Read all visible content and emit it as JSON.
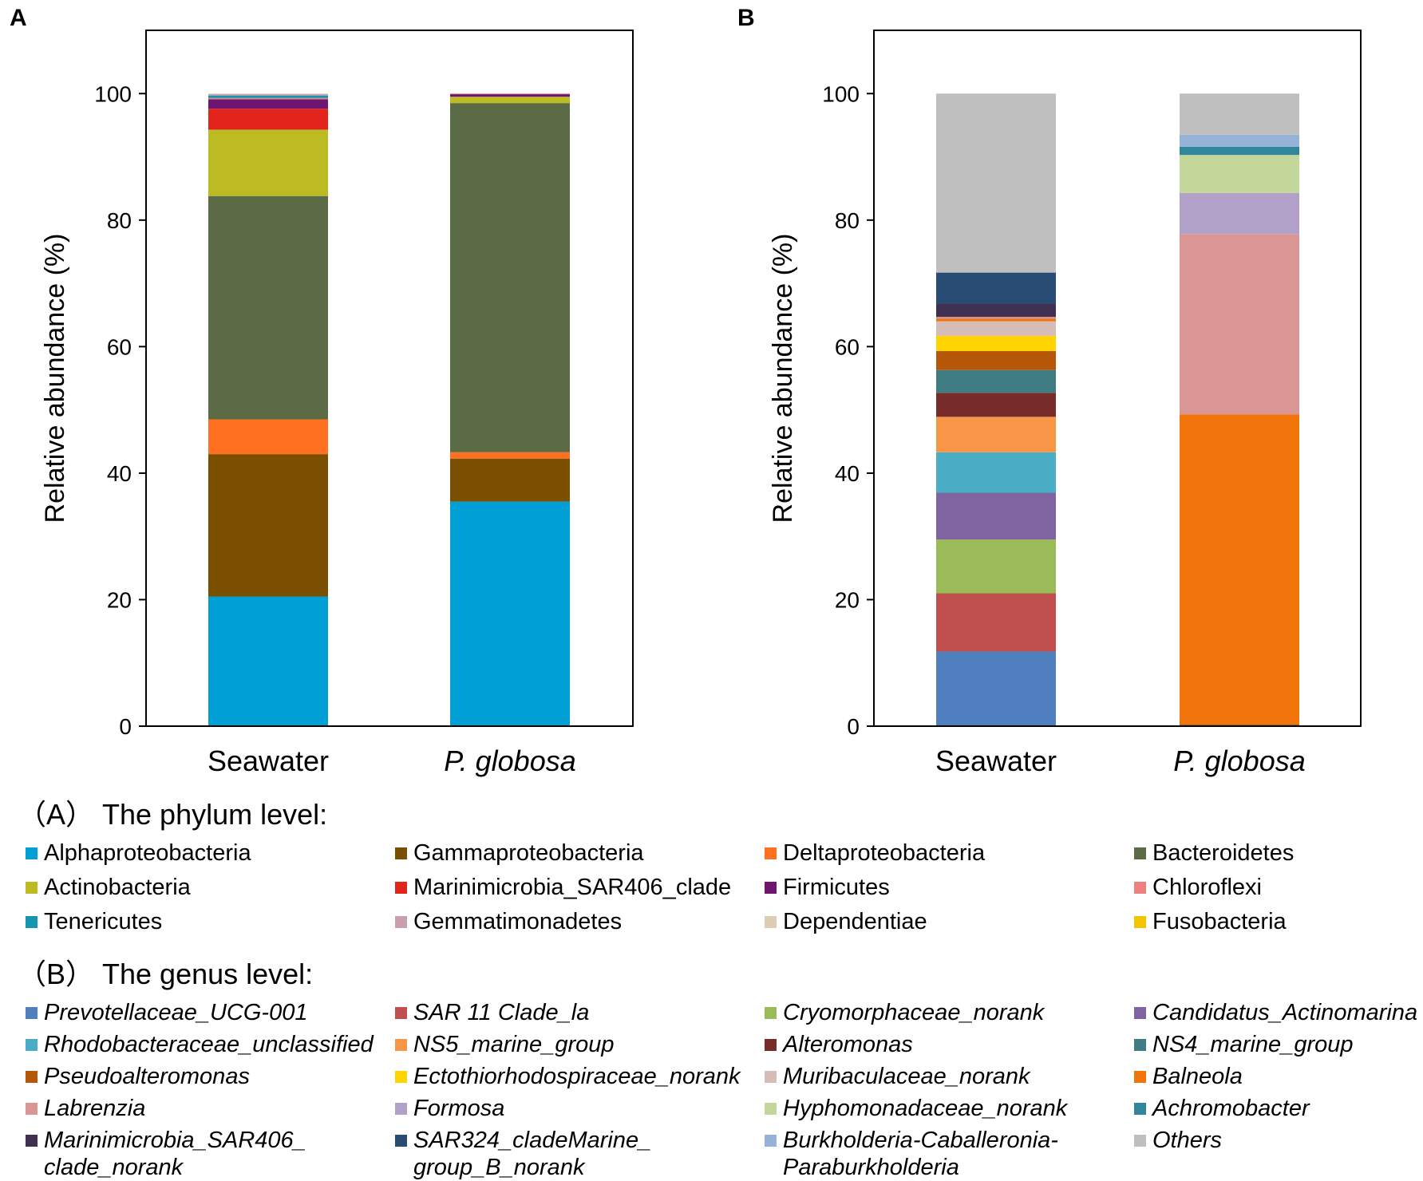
{
  "chart_data": [
    {
      "type": "bar",
      "stacked": true,
      "panel_label": "A",
      "ylabel": "Relative abundance (%)",
      "ylim": [
        0,
        110
      ],
      "yticks": [
        0,
        20,
        40,
        60,
        80,
        100
      ],
      "categories": [
        "Seawater",
        "P. globosa"
      ],
      "category_italic": [
        false,
        true
      ],
      "series": [
        {
          "name": "Alphaproteobacteria",
          "color": "#00A0D6",
          "values": [
            20.5,
            35.5
          ]
        },
        {
          "name": "Gammaproteobacteria",
          "color": "#7A5000",
          "values": [
            22.5,
            6.8
          ]
        },
        {
          "name": "Deltaproteobacteria",
          "color": "#FF7020",
          "values": [
            5.5,
            1.0
          ]
        },
        {
          "name": "Bacteroidetes",
          "color": "#5B6B45",
          "values": [
            35.3,
            55.2
          ]
        },
        {
          "name": "Actinobacteria",
          "color": "#BCBC22",
          "values": [
            10.5,
            1.0
          ]
        },
        {
          "name": "Marinimicrobia_SAR406_clade",
          "color": "#E3241C",
          "values": [
            3.3,
            0.0
          ]
        },
        {
          "name": "Firmicutes",
          "color": "#6E1570",
          "values": [
            1.5,
            0.4
          ]
        },
        {
          "name": "Chloroflexi",
          "color": "#F08080",
          "values": [
            0.2,
            0.1
          ]
        },
        {
          "name": "Tenericutes",
          "color": "#1495B0",
          "values": [
            0.4,
            0.0
          ]
        },
        {
          "name": "Gemmatimonadetes",
          "color": "#C8A0B0",
          "values": [
            0.2,
            0.0
          ]
        },
        {
          "name": "Dependentiae",
          "color": "#DCCDB4",
          "values": [
            0.1,
            0.0
          ]
        },
        {
          "name": "Fusobacteria",
          "color": "#F5C400",
          "values": [
            0.0,
            0.0
          ]
        }
      ]
    },
    {
      "type": "bar",
      "stacked": true,
      "panel_label": "B",
      "ylabel": "Relative abundance (%)",
      "ylim": [
        0,
        110
      ],
      "yticks": [
        0,
        20,
        40,
        60,
        80,
        100
      ],
      "categories": [
        "Seawater",
        "P. globosa"
      ],
      "category_italic": [
        false,
        true
      ],
      "series": [
        {
          "name": "Prevotellaceae_UCG-001",
          "color": "#4F7FBE",
          "values": [
            11.8,
            0.0
          ]
        },
        {
          "name": "SAR 11 Clade_la",
          "color": "#C0504D",
          "values": [
            9.2,
            0.0
          ]
        },
        {
          "name": "Cryomorphaceae_norank",
          "color": "#9BBB59",
          "values": [
            8.5,
            0.0
          ]
        },
        {
          "name": "Candidatus_Actinomarina",
          "color": "#8064A2",
          "values": [
            7.4,
            0.0
          ]
        },
        {
          "name": "Rhodobacteraceae_unclassified",
          "color": "#4BACC6",
          "values": [
            6.4,
            0.0
          ]
        },
        {
          "name": "NS5_marine_group",
          "color": "#F79646",
          "values": [
            5.6,
            0.0
          ]
        },
        {
          "name": "Alteromonas",
          "color": "#772C2A",
          "values": [
            3.8,
            0.0
          ]
        },
        {
          "name": "NS4_marine_group",
          "color": "#3F7C84",
          "values": [
            3.6,
            0.0
          ]
        },
        {
          "name": "Pseudoalteromonas",
          "color": "#B65708",
          "values": [
            3.0,
            0.3
          ]
        },
        {
          "name": "Ectothiorhodospiraceae_norank",
          "color": "#FFD400",
          "values": [
            2.4,
            0.0
          ]
        },
        {
          "name": "Muribaculaceae_norank",
          "color": "#D7BDB7",
          "values": [
            2.3,
            0.0
          ]
        },
        {
          "name": "Balneola",
          "color": "#F1750A",
          "values": [
            0.4,
            49.0
          ]
        },
        {
          "name": "Labrenzia",
          "color": "#DA9694",
          "values": [
            0.3,
            28.5
          ]
        },
        {
          "name": "Formosa",
          "color": "#B1A0C7",
          "values": [
            0.0,
            6.5
          ]
        },
        {
          "name": "Hyphomonadaceae_norank",
          "color": "#C4D79B",
          "values": [
            0.0,
            6.0
          ]
        },
        {
          "name": "Achromobacter",
          "color": "#31869B",
          "values": [
            0.0,
            1.3
          ]
        },
        {
          "name": "Marinimicrobia_SAR406_clade_norank",
          "color": "#403152",
          "values": [
            2.1,
            0.0
          ]
        },
        {
          "name": "SAR324_cladeMarine_group_B_norank",
          "color": "#284C73",
          "values": [
            4.9,
            0.0
          ]
        },
        {
          "name": "Burkholderia-Caballeronia-Paraburkholderia",
          "color": "#95B3D7",
          "values": [
            0.0,
            1.9
          ]
        },
        {
          "name": "Others",
          "color": "#BFBFBF",
          "values": [
            28.3,
            6.5
          ]
        }
      ]
    }
  ],
  "legend": {
    "phylum_title": "（A） The phylum level:",
    "genus_title": "（B） The genus level:",
    "phylum_items": [
      {
        "label": "Alphaproteobacteria",
        "color": "#00A0D6"
      },
      {
        "label": "Gammaproteobacteria",
        "color": "#7A5000"
      },
      {
        "label": "Deltaproteobacteria",
        "color": "#FF7020"
      },
      {
        "label": "Bacteroidetes",
        "color": "#5B6B45"
      },
      {
        "label": "Actinobacteria",
        "color": "#BCBC22"
      },
      {
        "label": "Marinimicrobia_SAR406_clade",
        "color": "#E3241C"
      },
      {
        "label": "Firmicutes",
        "color": "#6E1570"
      },
      {
        "label": "Chloroflexi",
        "color": "#F08080"
      },
      {
        "label": "Tenericutes",
        "color": "#1495B0"
      },
      {
        "label": "Gemmatimonadetes",
        "color": "#C8A0B0"
      },
      {
        "label": "Dependentiae",
        "color": "#DCCDB4"
      },
      {
        "label": "Fusobacteria",
        "color": "#F5C400"
      }
    ],
    "genus_items": [
      {
        "label": "Prevotellaceae_UCG-001",
        "color": "#4F7FBE"
      },
      {
        "label": "SAR 11 Clade_la",
        "color": "#C0504D"
      },
      {
        "label": "Cryomorphaceae_norank",
        "color": "#9BBB59"
      },
      {
        "label": "Candidatus_Actinomarina",
        "color": "#8064A2"
      },
      {
        "label": "Rhodobacteraceae_unclassified",
        "color": "#4BACC6"
      },
      {
        "label": "NS5_marine_group",
        "color": "#F79646"
      },
      {
        "label": "Alteromonas",
        "color": "#772C2A"
      },
      {
        "label": "NS4_marine_group",
        "color": "#3F7C84"
      },
      {
        "label": "Pseudoalteromonas",
        "color": "#B65708"
      },
      {
        "label": "Ectothiorhodospiraceae_norank",
        "color": "#FFD400"
      },
      {
        "label": "Muribaculaceae_norank",
        "color": "#D7BDB7"
      },
      {
        "label": "Balneola",
        "color": "#F1750A"
      },
      {
        "label": "Labrenzia",
        "color": "#DA9694"
      },
      {
        "label": "Formosa",
        "color": "#B1A0C7"
      },
      {
        "label": "Hyphomonadaceae_norank",
        "color": "#C4D79B"
      },
      {
        "label": "Achromobacter",
        "color": "#31869B"
      },
      {
        "label": "Marinimicrobia_SAR406_\nclade_norank",
        "color": "#403152"
      },
      {
        "label": "SAR324_cladeMarine_\ngroup_B_norank",
        "color": "#284C73"
      },
      {
        "label": "Burkholderia-Caballeronia-\nParaburkholderia",
        "color": "#95B3D7"
      },
      {
        "label": "Others",
        "color": "#BFBFBF"
      }
    ]
  }
}
